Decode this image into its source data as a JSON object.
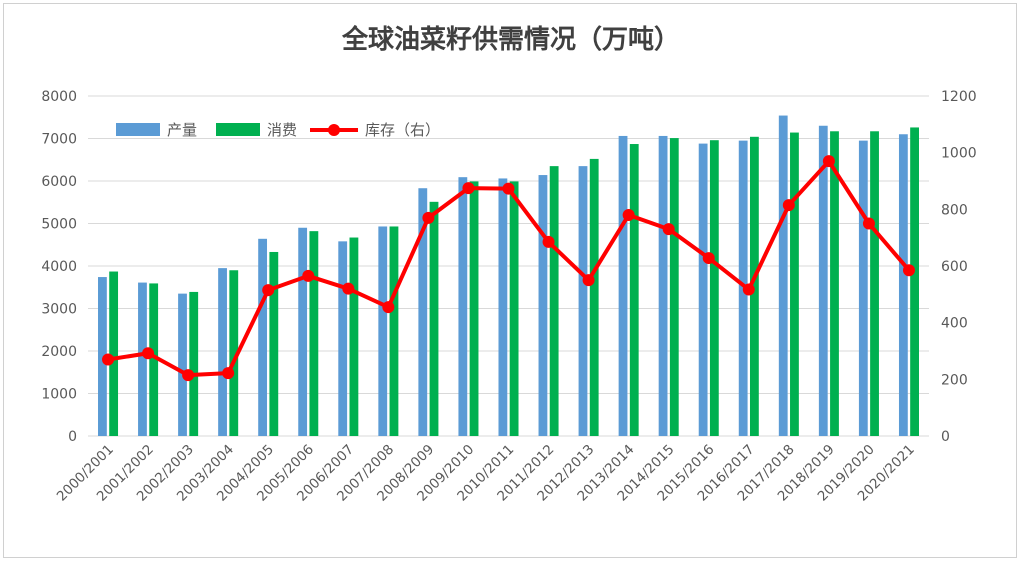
{
  "chart_data": {
    "type": "bar+line",
    "title": "全球油菜籽供需情况（万吨）",
    "categories": [
      "2000/2001",
      "2001/2002",
      "2002/2003",
      "2003/2004",
      "2004/2005",
      "2005/2006",
      "2006/2007",
      "2007/2008",
      "2008/2009",
      "2009/2010",
      "2010/2011",
      "2011/2012",
      "2012/2013",
      "2013/2014",
      "2014/2015",
      "2015/2016",
      "2016/2017",
      "2017/2018",
      "2018/2019",
      "2019/2020",
      "2020/2021"
    ],
    "series": [
      {
        "name": "产量",
        "type": "bar",
        "axis": "left",
        "color": "#5b9bd5",
        "values": [
          3740,
          3610,
          3350,
          3950,
          4640,
          4900,
          4580,
          4930,
          5830,
          6090,
          6060,
          6140,
          6350,
          7060,
          7060,
          6880,
          6950,
          7540,
          7300,
          6950,
          7100
        ]
      },
      {
        "name": "消费",
        "type": "bar",
        "axis": "left",
        "color": "#00b050",
        "values": [
          3870,
          3590,
          3390,
          3900,
          4330,
          4820,
          4670,
          4930,
          5510,
          5990,
          5990,
          6350,
          6520,
          6870,
          7010,
          6960,
          7040,
          7140,
          7170,
          7170,
          7260
        ]
      },
      {
        "name": "库存（右）",
        "type": "line",
        "axis": "right",
        "color": "#ff0000",
        "values": [
          270,
          292,
          215,
          222,
          515,
          565,
          520,
          455,
          770,
          875,
          873,
          685,
          550,
          780,
          730,
          628,
          517,
          815,
          970,
          750,
          585
        ]
      }
    ],
    "yleft": {
      "min": 0,
      "max": 8000,
      "ticks": [
        0,
        1000,
        2000,
        3000,
        4000,
        5000,
        6000,
        7000,
        8000
      ]
    },
    "yright": {
      "min": 0,
      "max": 1200,
      "ticks": [
        0,
        200,
        400,
        600,
        800,
        1000,
        1200
      ]
    },
    "grid": true,
    "legend_position": "top-left"
  }
}
